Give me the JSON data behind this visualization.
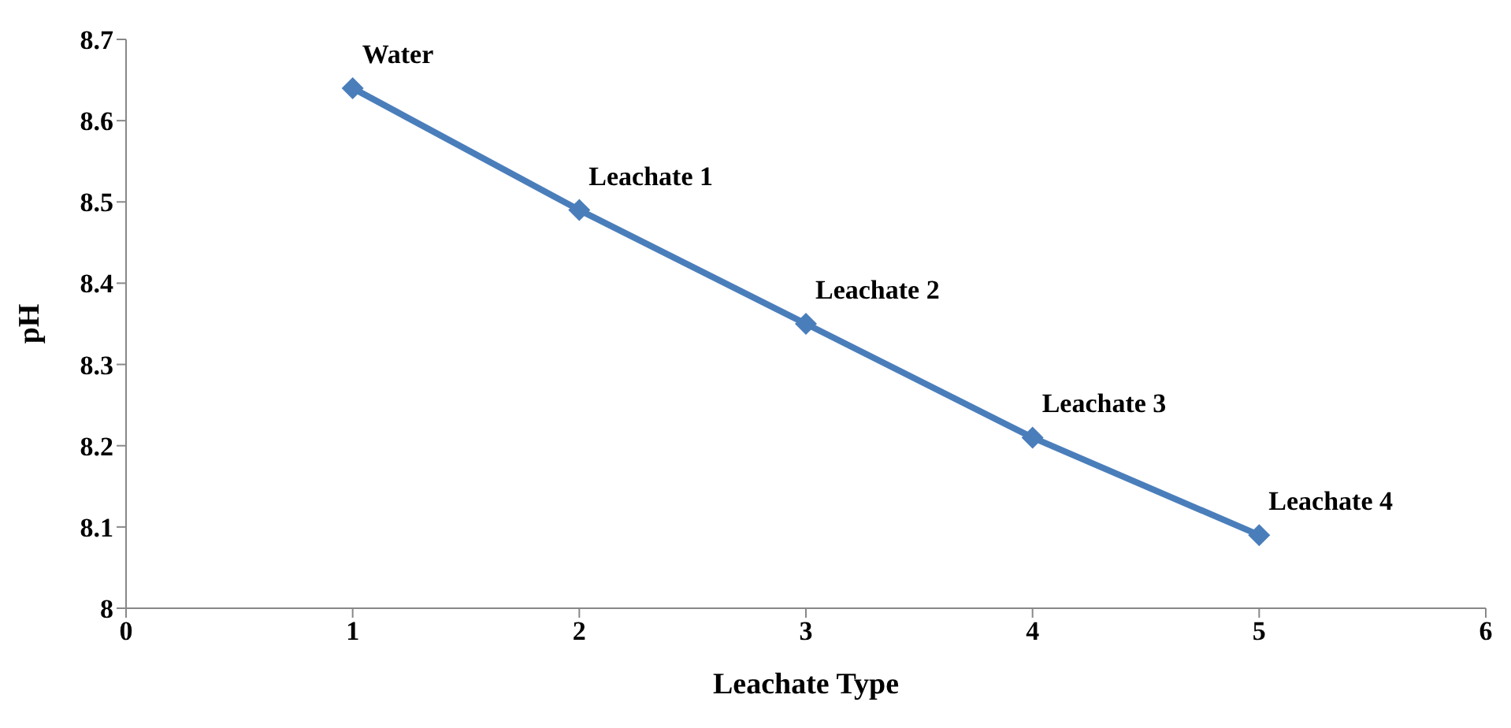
{
  "chart_data": {
    "type": "line",
    "xlabel": "Leachate Type",
    "ylabel": "pH",
    "x": [
      1,
      2,
      3,
      4,
      5
    ],
    "series": [
      {
        "color": "#4a7ebb",
        "values": [
          8.64,
          8.49,
          8.35,
          8.21,
          8.09
        ]
      }
    ],
    "xlim": [
      0,
      6
    ],
    "xticks": [
      0,
      1,
      2,
      3,
      4,
      5,
      6
    ],
    "ylim": [
      8,
      8.7
    ],
    "yticks": [
      8,
      8.1,
      8.2,
      8.3,
      8.4,
      8.5,
      8.6,
      8.7
    ],
    "marker": "diamond",
    "line_style": "solid",
    "grid": false,
    "legend": false,
    "annotations": [
      {
        "text": "Water",
        "x": 1,
        "y": 8.64
      },
      {
        "text": "Leachate 1",
        "x": 2,
        "y": 8.49
      },
      {
        "text": "Leachate 2",
        "x": 3,
        "y": 8.35
      },
      {
        "text": "Leachate 3",
        "x": 4,
        "y": 8.21
      },
      {
        "text": "Leachate 4",
        "x": 5,
        "y": 8.09
      }
    ]
  }
}
